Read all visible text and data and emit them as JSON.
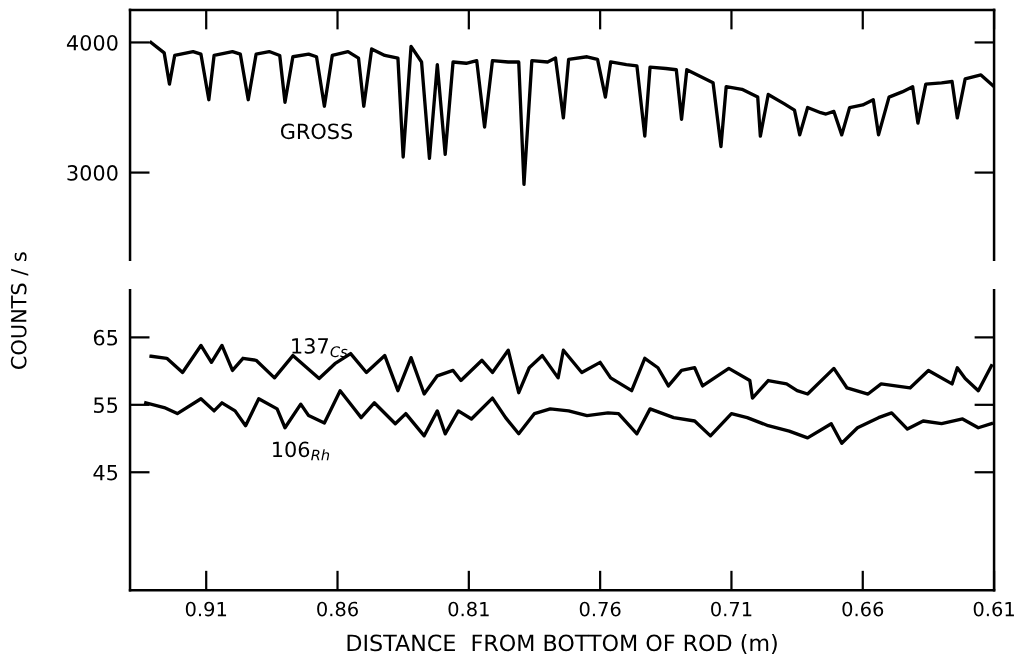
{
  "chart_data": [
    {
      "type": "line",
      "xlim": [
        0.939,
        0.61
      ],
      "xticks": [
        0.91,
        0.86,
        0.81,
        0.76,
        0.71,
        0.66,
        0.61
      ],
      "ylim": [
        2330,
        4250
      ],
      "yticks": [
        3000,
        4000
      ],
      "tick_labels": "y",
      "grid": false,
      "marker": "none",
      "line_style": "solid",
      "series": [
        {
          "name": "GROSS",
          "color": "#000000",
          "x": [
            0.931,
            0.926,
            0.924,
            0.922,
            0.915,
            0.912,
            0.909,
            0.907,
            0.9,
            0.897,
            0.894,
            0.891,
            0.886,
            0.882,
            0.88,
            0.877,
            0.871,
            0.868,
            0.865,
            0.862,
            0.856,
            0.852,
            0.85,
            0.847,
            0.842,
            0.837,
            0.835,
            0.832,
            0.828,
            0.825,
            0.822,
            0.819,
            0.816,
            0.811,
            0.807,
            0.804,
            0.801,
            0.795,
            0.791,
            0.789,
            0.786,
            0.78,
            0.777,
            0.774,
            0.772,
            0.765,
            0.761,
            0.758,
            0.756,
            0.75,
            0.746,
            0.743,
            0.741,
            0.735,
            0.731,
            0.729,
            0.727,
            0.722,
            0.717,
            0.714,
            0.712,
            0.706,
            0.7,
            0.699,
            0.696,
            0.69,
            0.686,
            0.684,
            0.681,
            0.676,
            0.674,
            0.671,
            0.668,
            0.665,
            0.66,
            0.656,
            0.654,
            0.65,
            0.645,
            0.641,
            0.639,
            0.636,
            0.63,
            0.626,
            0.624,
            0.621,
            0.615,
            0.61
          ],
          "values": [
            4000,
            3920,
            3680,
            3900,
            3930,
            3910,
            3560,
            3900,
            3930,
            3910,
            3560,
            3910,
            3930,
            3900,
            3540,
            3890,
            3910,
            3890,
            3510,
            3900,
            3930,
            3880,
            3510,
            3950,
            3900,
            3880,
            3120,
            3970,
            3850,
            3110,
            3830,
            3140,
            3850,
            3840,
            3860,
            3350,
            3860,
            3850,
            3850,
            2910,
            3860,
            3850,
            3880,
            3420,
            3870,
            3890,
            3870,
            3580,
            3850,
            3830,
            3820,
            3280,
            3810,
            3800,
            3790,
            3410,
            3790,
            3740,
            3690,
            3200,
            3660,
            3640,
            3580,
            3280,
            3600,
            3530,
            3480,
            3290,
            3500,
            3460,
            3450,
            3470,
            3290,
            3500,
            3520,
            3560,
            3290,
            3580,
            3620,
            3660,
            3380,
            3680,
            3690,
            3700,
            3420,
            3720,
            3750,
            3660
          ]
        }
      ]
    },
    {
      "type": "line",
      "xlim": [
        0.939,
        0.61
      ],
      "xticks": [
        0.91,
        0.86,
        0.81,
        0.76,
        0.71,
        0.66,
        0.61
      ],
      "ylim": [
        27.5,
        72
      ],
      "yticks": [
        65,
        55,
        45
      ],
      "xlabel": "DISTANCE  FROM BOTTOM OF ROD (m)",
      "ylabel": "COUNTS / s",
      "grid": false,
      "marker": "none",
      "line_style": "solid",
      "series": [
        {
          "name": "137$_{Cs}$",
          "color": "#000000",
          "x": [
            0.931,
            0.925,
            0.919,
            0.912,
            0.908,
            0.904,
            0.9,
            0.896,
            0.891,
            0.884,
            0.877,
            0.867,
            0.861,
            0.855,
            0.849,
            0.842,
            0.837,
            0.832,
            0.827,
            0.822,
            0.816,
            0.813,
            0.805,
            0.801,
            0.795,
            0.791,
            0.787,
            0.782,
            0.776,
            0.774,
            0.767,
            0.76,
            0.756,
            0.748,
            0.743,
            0.738,
            0.734,
            0.729,
            0.724,
            0.721,
            0.711,
            0.703,
            0.702,
            0.696,
            0.689,
            0.685,
            0.681,
            0.671,
            0.666,
            0.658,
            0.653,
            0.642,
            0.635,
            0.626,
            0.624,
            0.621,
            0.616,
            0.611
          ],
          "values": [
            62.2,
            61.9,
            59.8,
            63.8,
            61.3,
            63.8,
            60.1,
            61.9,
            61.6,
            59.0,
            62.3,
            58.9,
            61.1,
            62.6,
            59.8,
            62.3,
            57.1,
            62.0,
            56.6,
            59.3,
            60.1,
            58.6,
            61.6,
            59.8,
            63.1,
            56.8,
            60.5,
            62.3,
            59.0,
            63.1,
            59.8,
            61.3,
            59.0,
            57.1,
            61.9,
            60.5,
            57.8,
            60.1,
            60.5,
            57.8,
            60.4,
            58.6,
            56.0,
            58.6,
            58.1,
            57.1,
            56.6,
            60.4,
            57.5,
            56.6,
            58.1,
            57.5,
            60.1,
            58.1,
            60.5,
            58.9,
            57.1,
            60.8
          ]
        },
        {
          "name": "106$_{Rh}$",
          "color": "#000000",
          "x": [
            0.933,
            0.926,
            0.921,
            0.912,
            0.907,
            0.904,
            0.899,
            0.895,
            0.89,
            0.883,
            0.88,
            0.874,
            0.871,
            0.865,
            0.859,
            0.854,
            0.851,
            0.846,
            0.838,
            0.834,
            0.827,
            0.822,
            0.819,
            0.814,
            0.809,
            0.801,
            0.796,
            0.791,
            0.785,
            0.779,
            0.772,
            0.765,
            0.757,
            0.753,
            0.746,
            0.741,
            0.732,
            0.724,
            0.718,
            0.71,
            0.704,
            0.696,
            0.688,
            0.681,
            0.672,
            0.668,
            0.662,
            0.654,
            0.649,
            0.643,
            0.637,
            0.63,
            0.622,
            0.616,
            0.611
          ],
          "values": [
            55.3,
            54.6,
            53.7,
            55.9,
            54.1,
            55.3,
            54.1,
            51.9,
            55.9,
            54.4,
            51.6,
            55.1,
            53.4,
            52.3,
            57.1,
            54.6,
            53.1,
            55.3,
            52.2,
            53.7,
            50.4,
            54.1,
            50.7,
            54.1,
            52.9,
            56.0,
            53.1,
            50.7,
            53.7,
            54.4,
            54.1,
            53.4,
            53.8,
            53.7,
            50.7,
            54.4,
            53.1,
            52.6,
            50.4,
            53.7,
            53.1,
            51.9,
            51.1,
            50.1,
            52.2,
            49.3,
            51.6,
            53.1,
            53.8,
            51.4,
            52.6,
            52.2,
            52.9,
            51.6,
            52.2
          ]
        }
      ]
    }
  ]
}
